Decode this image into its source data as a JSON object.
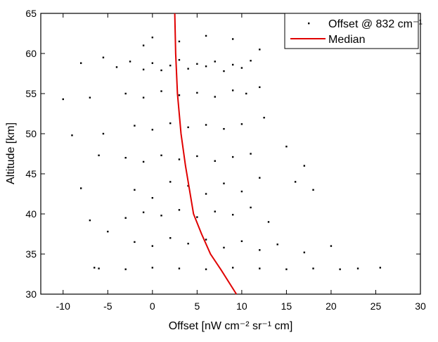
{
  "chart_data": {
    "type": "scatter",
    "xlabel": "Offset [nW cm⁻² sr⁻¹ cm]",
    "ylabel": "Altitude [km]",
    "xlim": [
      -12.5,
      30
    ],
    "xticks": [
      -10,
      -5,
      0,
      5,
      10,
      15,
      20,
      25,
      30
    ],
    "ylim": [
      30,
      65
    ],
    "yticks": [
      30,
      35,
      40,
      45,
      50,
      55,
      60,
      65
    ],
    "legend": "upper right",
    "series": [
      {
        "name": "Offset @ 832 cm⁻¹",
        "color": "#000000",
        "kind": "points",
        "x": [
          -4,
          -2.5,
          -1,
          0,
          1,
          2,
          3,
          4,
          5,
          6,
          7,
          8,
          9,
          10,
          11,
          -5.5,
          -8,
          12,
          0,
          3,
          6,
          9,
          -1,
          -3,
          -1,
          1,
          3,
          5,
          7,
          9,
          10.5,
          -7,
          -10,
          12,
          -2,
          0,
          2,
          4,
          6,
          8,
          10,
          -5.5,
          -9,
          12.5,
          -3,
          -1,
          1,
          3,
          5,
          7,
          9,
          11,
          -6,
          15,
          17,
          -2,
          0,
          2,
          4,
          6,
          8,
          10,
          12,
          -8,
          16,
          18,
          -3,
          -1,
          1,
          3,
          5,
          7,
          9,
          11,
          13,
          -7,
          -2,
          0,
          2,
          4,
          6,
          8,
          10,
          12,
          14,
          -5,
          17,
          20,
          -6,
          -3,
          0,
          3,
          6,
          9,
          12,
          15,
          18,
          21,
          23,
          25.5,
          -6.5
        ],
        "values": [
          58.3,
          59,
          58,
          58.8,
          57.9,
          58.5,
          59.2,
          58.1,
          58.7,
          58.4,
          59,
          57.8,
          58.6,
          58.2,
          59.1,
          59.5,
          58.8,
          60.5,
          62,
          61.5,
          62.2,
          61.8,
          61,
          55,
          54.5,
          55.3,
          54.8,
          55.1,
          54.6,
          55.4,
          55,
          54.5,
          54.3,
          55.8,
          51,
          50.5,
          51.3,
          50.8,
          51.1,
          50.6,
          51.2,
          50,
          49.8,
          52,
          47,
          46.5,
          47.3,
          46.8,
          47.2,
          46.6,
          47.1,
          47.5,
          47.3,
          48.4,
          46,
          43,
          42,
          44,
          43.5,
          42.5,
          43.8,
          42.8,
          44.5,
          43.2,
          44,
          43,
          39.5,
          40.2,
          39.8,
          40.5,
          39.6,
          40.3,
          39.9,
          40.8,
          39,
          39.2,
          36.5,
          36,
          37,
          36.3,
          36.8,
          35.8,
          36.6,
          35.5,
          36.2,
          37.8,
          35.2,
          36,
          33.2,
          33.1,
          33.3,
          33.2,
          33.1,
          33.3,
          33.2,
          33.1,
          33.2,
          33.1,
          33.2,
          33.3,
          33.3
        ]
      },
      {
        "name": "Median",
        "color": "#e00000",
        "kind": "line",
        "x": [
          2.5,
          2.6,
          2.8,
          3.2,
          3.7,
          4.6,
          5.5,
          6.5,
          7.7,
          9.4
        ],
        "values": [
          65,
          60,
          55,
          50,
          46,
          40,
          37.5,
          35,
          33,
          30
        ]
      }
    ]
  }
}
